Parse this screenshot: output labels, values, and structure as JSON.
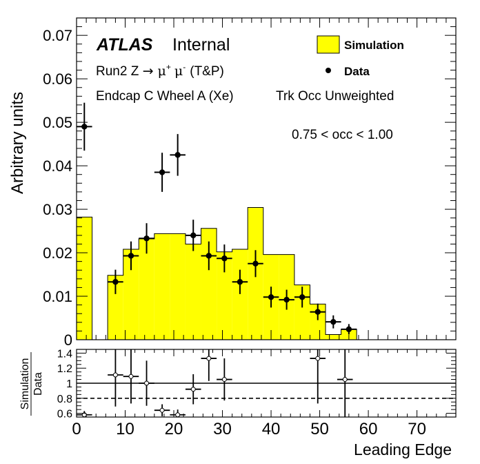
{
  "chart_data": [
    {
      "type": "bar",
      "panel": "main",
      "ylabel": "Arbitrary units",
      "xlim": [
        0,
        78
      ],
      "ylim": [
        0,
        0.074
      ],
      "x_ticks": [
        0,
        10,
        20,
        30,
        40,
        50,
        60,
        70
      ],
      "y_ticks": [
        0,
        0.01,
        0.02,
        0.03,
        0.04,
        0.05,
        0.06,
        0.07
      ],
      "y_tick_labels": [
        "0",
        "0.01",
        "0.02",
        "0.03",
        "0.04",
        "0.05",
        "0.06",
        "0.07"
      ],
      "annotations": {
        "atlas": "ATLAS",
        "internal": "Internal",
        "run_pre": "Run2 Z ",
        "arrow": "→",
        "mu": "μ",
        "plus": "+",
        "minus": "-",
        "tp": "(T&P)",
        "region": "Endcap C Wheel A (Xe)",
        "weighting": "Trk Occ Unweighted",
        "occ_range": "0.75 < occ < 1.00"
      },
      "legend_position": "top-right",
      "legend": [
        {
          "label": "Simulation",
          "style": "filled-box"
        },
        {
          "label": "Data",
          "style": "marker"
        }
      ],
      "colors": {
        "simulation_fill": "#ffff00",
        "data": "#000000"
      },
      "simulation_histogram": [
        {
          "x0": 0,
          "x1": 3.2,
          "y": 0.0282
        },
        {
          "x0": 3.2,
          "x1": 6.4,
          "y": 0.0
        },
        {
          "x0": 6.4,
          "x1": 9.6,
          "y": 0.0148
        },
        {
          "x0": 9.6,
          "x1": 12.8,
          "y": 0.0208
        },
        {
          "x0": 12.8,
          "x1": 16.0,
          "y": 0.0232
        },
        {
          "x0": 16.0,
          "x1": 19.2,
          "y": 0.0244
        },
        {
          "x0": 19.2,
          "x1": 22.4,
          "y": 0.0244
        },
        {
          "x0": 22.4,
          "x1": 25.6,
          "y": 0.022
        },
        {
          "x0": 25.6,
          "x1": 28.8,
          "y": 0.0256
        },
        {
          "x0": 28.8,
          "x1": 32.0,
          "y": 0.0202
        },
        {
          "x0": 32.0,
          "x1": 35.2,
          "y": 0.0208
        },
        {
          "x0": 35.2,
          "x1": 38.4,
          "y": 0.0304
        },
        {
          "x0": 38.4,
          "x1": 41.6,
          "y": 0.0196
        },
        {
          "x0": 41.6,
          "x1": 44.8,
          "y": 0.0196
        },
        {
          "x0": 44.8,
          "x1": 48.0,
          "y": 0.0126
        },
        {
          "x0": 48.0,
          "x1": 51.2,
          "y": 0.0082
        },
        {
          "x0": 51.2,
          "x1": 54.4,
          "y": 0.0012
        },
        {
          "x0": 54.4,
          "x1": 57.6,
          "y": 0.0024
        }
      ],
      "data_points": [
        {
          "x": 1.6,
          "y": 0.049,
          "err": 0.0055
        },
        {
          "x": 8.0,
          "y": 0.0133,
          "err": 0.0028
        },
        {
          "x": 11.2,
          "y": 0.0193,
          "err": 0.0033
        },
        {
          "x": 14.4,
          "y": 0.0233,
          "err": 0.0035
        },
        {
          "x": 17.6,
          "y": 0.0385,
          "err": 0.0045
        },
        {
          "x": 20.8,
          "y": 0.0425,
          "err": 0.0048
        },
        {
          "x": 24.0,
          "y": 0.024,
          "err": 0.0036
        },
        {
          "x": 27.2,
          "y": 0.0193,
          "err": 0.0033
        },
        {
          "x": 30.4,
          "y": 0.0187,
          "err": 0.0032
        },
        {
          "x": 33.6,
          "y": 0.0133,
          "err": 0.0028
        },
        {
          "x": 36.8,
          "y": 0.0175,
          "err": 0.0031
        },
        {
          "x": 40.0,
          "y": 0.0098,
          "err": 0.0024
        },
        {
          "x": 43.2,
          "y": 0.0092,
          "err": 0.0023
        },
        {
          "x": 46.4,
          "y": 0.0098,
          "err": 0.0024
        },
        {
          "x": 49.6,
          "y": 0.0064,
          "err": 0.0019
        },
        {
          "x": 52.8,
          "y": 0.0041,
          "err": 0.0015
        },
        {
          "x": 56.0,
          "y": 0.0024,
          "err": 0.0012
        }
      ],
      "x_bin_half_width": 1.6
    },
    {
      "type": "scatter",
      "panel": "ratio",
      "ylabel_top": "Simulation",
      "ylabel_bottom": "Data",
      "xlabel": "Leading Edge",
      "xlim": [
        0,
        78
      ],
      "ylim": [
        0.55,
        1.45
      ],
      "x_ticks": [
        0,
        10,
        20,
        30,
        40,
        50,
        60,
        70
      ],
      "x_tick_labels": [
        "0",
        "10",
        "20",
        "30",
        "40",
        "50",
        "60",
        "70"
      ],
      "y_ticks": [
        0.6,
        0.8,
        1.0,
        1.2,
        1.4
      ],
      "y_tick_labels": [
        "0.6",
        "0.8",
        "1",
        "1.2",
        "1.4"
      ],
      "reference_lines": [
        {
          "y": 1.0,
          "style": "solid"
        },
        {
          "y": 0.8,
          "style": "dashed"
        }
      ],
      "points": [
        {
          "x": 1.6,
          "y": 0.58,
          "err": 0.05
        },
        {
          "x": 8.0,
          "y": 1.11,
          "err": 0.42
        },
        {
          "x": 11.2,
          "y": 1.09,
          "err": 0.36
        },
        {
          "x": 14.4,
          "y": 1.0,
          "err": 0.3
        },
        {
          "x": 17.6,
          "y": 0.64,
          "err": 0.08
        },
        {
          "x": 20.8,
          "y": 0.58,
          "err": 0.07
        },
        {
          "x": 24.0,
          "y": 0.92,
          "err": 0.2
        },
        {
          "x": 27.2,
          "y": 1.33,
          "err": 0.3
        },
        {
          "x": 30.4,
          "y": 1.05,
          "err": 0.28
        },
        {
          "x": 49.6,
          "y": 1.33,
          "err": 0.6
        },
        {
          "x": 55.2,
          "y": 1.05,
          "err": 0.6
        }
      ],
      "x_bin_half_width": 1.6
    }
  ]
}
